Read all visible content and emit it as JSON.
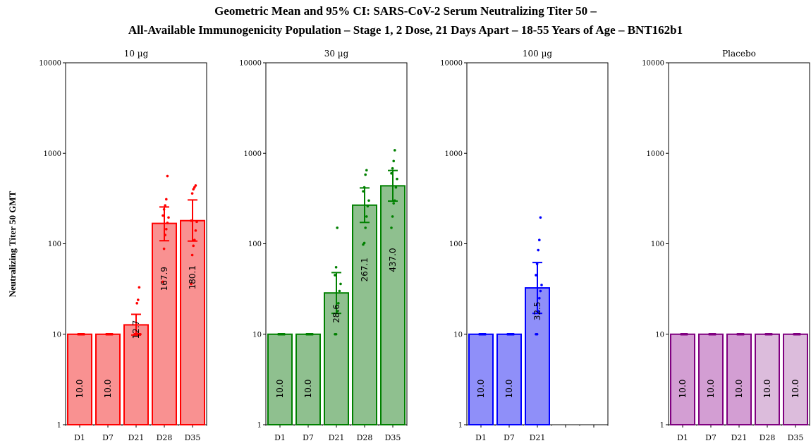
{
  "chart_data": {
    "type": "bar",
    "title": "Geometric Mean and 95% CI: SARS-CoV-2 Serum Neutralizing Titer 50 –",
    "subtitle": "All-Available Immunogenicity Population – Stage 1, 2 Dose, 21 Days Apart – 18-55 Years of Age – BNT162b1",
    "ylabel": "Neutralizing Titer 50 GMT",
    "yscale": "log",
    "ylim": [
      1,
      10000
    ],
    "yticks": [
      "1",
      "10",
      "100",
      "1000",
      "10000"
    ],
    "categories": [
      "D1",
      "D7",
      "D21",
      "D28",
      "D35"
    ],
    "panels": [
      {
        "name": "10 µg",
        "color": "#ff0000",
        "fill": "#f99191",
        "bars": [
          {
            "label": "D1",
            "value": 10.0,
            "value_text": "10.0",
            "ci": null,
            "points": [
              10,
              10,
              10,
              10,
              10,
              10,
              10,
              10,
              10,
              10,
              10,
              10
            ]
          },
          {
            "label": "D7",
            "value": 10.0,
            "value_text": "10.0",
            "ci": null,
            "points": [
              10,
              10,
              10,
              10,
              10,
              10,
              10,
              10,
              10,
              10,
              10,
              10
            ]
          },
          {
            "label": "D21",
            "value": 12.7,
            "value_text": "12.7",
            "ci": [
              9.8,
              16.6
            ],
            "points": [
              10,
              10,
              10,
              10,
              10,
              10,
              10,
              10,
              22,
              24,
              33
            ]
          },
          {
            "label": "D28",
            "value": 167.9,
            "value_text": "167.9",
            "ci": [
              108,
              255
            ],
            "points": [
              38,
              88,
              125,
              145,
              170,
              195,
              205,
              240,
              265,
              310,
              560
            ]
          },
          {
            "label": "D35",
            "value": 180.1,
            "value_text": "180.1",
            "ci": [
              107,
              305
            ],
            "points": [
              36,
              75,
              95,
              110,
              140,
              175,
              180,
              360,
              400,
              420,
              440
            ]
          }
        ]
      },
      {
        "name": "30 µg",
        "color": "#008000",
        "fill": "#8fc08f",
        "bars": [
          {
            "label": "D1",
            "value": 10.0,
            "value_text": "10.0",
            "ci": null,
            "points": [
              10,
              10,
              10,
              10,
              10,
              10,
              10,
              10,
              10,
              10,
              10,
              10
            ]
          },
          {
            "label": "D7",
            "value": 10.0,
            "value_text": "10.0",
            "ci": null,
            "points": [
              10,
              10,
              10,
              10,
              10,
              10,
              10,
              10,
              10,
              10,
              10,
              10
            ]
          },
          {
            "label": "D21",
            "value": 28.6,
            "value_text": "28.6",
            "ci": [
              17,
              48
            ],
            "points": [
              10,
              10,
              18,
              22,
              30,
              36,
              45,
              55,
              150
            ]
          },
          {
            "label": "D28",
            "value": 267.1,
            "value_text": "267.1",
            "ci": [
              172,
              414
            ],
            "points": [
              98,
              102,
              150,
              200,
              260,
              300,
              380,
              420,
              580,
              650
            ]
          },
          {
            "label": "D35",
            "value": 437.0,
            "value_text": "437.0",
            "ci": [
              296,
              645
            ],
            "points": [
              150,
              200,
              280,
              300,
              420,
              520,
              600,
              680,
              820,
              1080
            ]
          }
        ]
      },
      {
        "name": "100 µg",
        "color": "#0000ff",
        "fill": "#8f8ff9",
        "bars": [
          {
            "label": "D1",
            "value": 10.0,
            "value_text": "10.0",
            "ci": null,
            "points": [
              10,
              10,
              10,
              10,
              10,
              10,
              10,
              10,
              10,
              10,
              10,
              10
            ]
          },
          {
            "label": "D7",
            "value": 10.0,
            "value_text": "10.0",
            "ci": null,
            "points": [
              10,
              10,
              10,
              10,
              10,
              10,
              10,
              10,
              10,
              10,
              10,
              10
            ]
          },
          {
            "label": "D21",
            "value": 32.5,
            "value_text": "32.5",
            "ci": [
              17,
              62
            ],
            "points": [
              10,
              10,
              18,
              25,
              30,
              35,
              45,
              60,
              85,
              110,
              195
            ]
          }
        ]
      },
      {
        "name": "Placebo",
        "color": "#800080",
        "fill": "#d3a3d3",
        "bars": [
          {
            "label": "D1",
            "value": 10.0,
            "value_text": "10.0",
            "ci": null,
            "points": [
              10,
              10,
              10,
              10,
              10,
              10,
              10,
              10,
              10,
              10,
              10,
              10
            ],
            "fill": "#d39ed3"
          },
          {
            "label": "D7",
            "value": 10.0,
            "value_text": "10.0",
            "ci": null,
            "points": [
              10,
              10,
              10,
              10,
              10,
              10,
              10,
              10,
              10,
              10,
              10,
              10
            ],
            "fill": "#d39ed3"
          },
          {
            "label": "D21",
            "value": 10.0,
            "value_text": "10.0",
            "ci": null,
            "points": [
              10,
              10,
              10,
              10,
              10,
              10,
              10,
              10,
              10,
              10,
              10,
              10
            ],
            "fill": "#d39ed3"
          },
          {
            "label": "D28",
            "value": 10.0,
            "value_text": "10.0",
            "ci": null,
            "points": [
              10,
              10,
              10,
              10,
              10,
              10,
              10,
              10,
              10,
              10,
              10,
              10
            ],
            "fill": "#dcbcdc"
          },
          {
            "label": "D35",
            "value": 10.0,
            "value_text": "10.0",
            "ci": null,
            "points": [
              10,
              10,
              10,
              10,
              10,
              10,
              10,
              10,
              10,
              10,
              10,
              10
            ],
            "fill": "#dcbcdc"
          }
        ]
      }
    ]
  }
}
